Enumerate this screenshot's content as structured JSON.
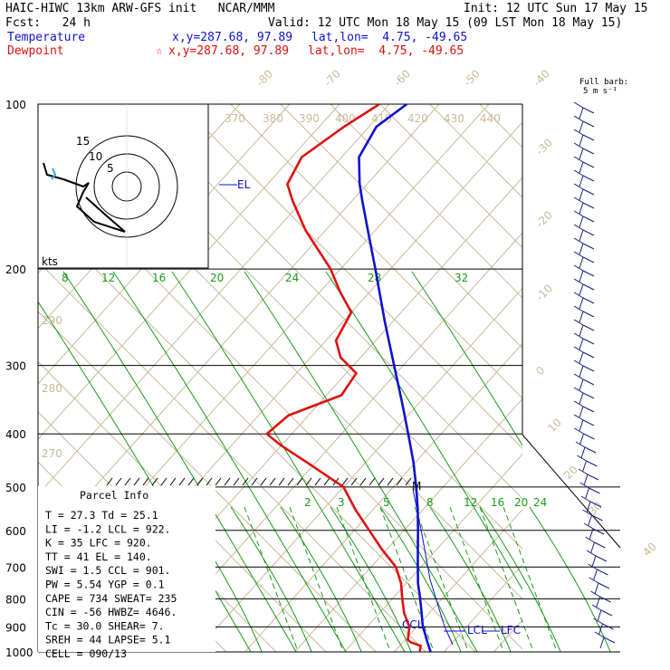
{
  "header": {
    "title": "HAIC-HIWC 13km ARW-GFS init   NCAR/MMM",
    "init": "Init: 12 UTC Sun 17 May 15",
    "fcst": "Fcst:   24 h",
    "valid": "Valid: 12 UTC Mon 18 May 15 (09 LST Mon 18 May 15)",
    "temperature_label": "Temperature",
    "temperature_xy": "x,y=287.68, 97.89",
    "temperature_latlon": "lat,lon=  4.75, -49.65",
    "dewpoint_label": "Dewpoint",
    "dewpoint_marker": "☆",
    "dewpoint_xy": "x,y=287.68, 97.89",
    "dewpoint_latlon": "lat,lon=  4.75, -49.65",
    "barb_label_1": "Full barb:",
    "barb_label_2": "5 m s⁻¹"
  },
  "hodograph": {
    "units": "kts",
    "ring_labels": [
      "5",
      "10",
      "15"
    ]
  },
  "parcel_info": {
    "title": "Parcel Info",
    "lines": [
      "T   =    27.3 Td =  25.1",
      "LI  =    -1.2 LCL =  922.",
      "K   =      35 LFC =  920.",
      "TT  =      41 EL  =  140.",
      "SWI =     1.5 CCL =  901.",
      "PW  =    5.54 YGP =   0.1",
      "CAPE =   734 SWEAT=  235",
      "CIN =    -56 HWBZ= 4646.",
      "Tc  =   30.0 SHEAR=   7.",
      "SREH =    44 LAPSE=  5.1",
      "CELL = 090/13"
    ]
  },
  "level_labels": {
    "el": "EL",
    "ccl": "CCL",
    "lcl": "LCL",
    "lfc": "LFC",
    "m": "M"
  },
  "chart_data": {
    "type": "skew-t",
    "pressure_levels": [
      100,
      200,
      300,
      400,
      500,
      600,
      700,
      800,
      900,
      1000
    ],
    "isotherm_labels": [
      "-80",
      "-70",
      "-60",
      "-50",
      "-40",
      "-30",
      "-20",
      "-10",
      "0",
      "10",
      "20",
      "30",
      "40"
    ],
    "dry_adiabat_labels": [
      "370",
      "380",
      "390",
      "400",
      "410",
      "420",
      "430",
      "440",
      "290",
      "280",
      "270"
    ],
    "moist_adiabat_labels_upper": [
      "8",
      "12",
      "16",
      "20",
      "24",
      "28",
      "32"
    ],
    "mixing_ratio_labels": [
      "2",
      "3",
      "5",
      "8",
      "12",
      "16",
      "20",
      "24"
    ],
    "series": [
      {
        "name": "Temperature",
        "color": "#1010d0",
        "points_p_T": [
          [
            1000,
            27.3
          ],
          [
            975,
            25.8
          ],
          [
            950,
            24.3
          ],
          [
            925,
            22.8
          ],
          [
            900,
            21.2
          ],
          [
            850,
            18.5
          ],
          [
            800,
            15.6
          ],
          [
            750,
            12.4
          ],
          [
            700,
            9.4
          ],
          [
            650,
            6.2
          ],
          [
            600,
            2.8
          ],
          [
            550,
            -1.0
          ],
          [
            500,
            -5.4
          ],
          [
            450,
            -10.5
          ],
          [
            400,
            -16.6
          ],
          [
            350,
            -23.6
          ],
          [
            300,
            -31.8
          ],
          [
            250,
            -41.5
          ],
          [
            200,
            -53.0
          ],
          [
            170,
            -61.5
          ],
          [
            150,
            -68.0
          ],
          [
            140,
            -71.5
          ],
          [
            125,
            -76.5
          ],
          [
            110,
            -78.5
          ],
          [
            100,
            -76.5
          ]
        ]
      },
      {
        "name": "Dewpoint",
        "color": "#e01010",
        "points_p_T": [
          [
            1000,
            25.1
          ],
          [
            975,
            24.2
          ],
          [
            960,
            21.5
          ],
          [
            950,
            20.5
          ],
          [
            900,
            18.5
          ],
          [
            850,
            15.0
          ],
          [
            800,
            12.0
          ],
          [
            750,
            9.0
          ],
          [
            700,
            5.0
          ],
          [
            650,
            -1.0
          ],
          [
            600,
            -7.0
          ],
          [
            550,
            -13.5
          ],
          [
            500,
            -20.0
          ],
          [
            450,
            -32.0
          ],
          [
            420,
            -40.0
          ],
          [
            400,
            -45.0
          ],
          [
            370,
            -44.0
          ],
          [
            340,
            -37.0
          ],
          [
            310,
            -38.0
          ],
          [
            290,
            -44.0
          ],
          [
            270,
            -48.0
          ],
          [
            240,
            -50.0
          ],
          [
            220,
            -56.0
          ],
          [
            200,
            -62.0
          ],
          [
            170,
            -74.0
          ],
          [
            150,
            -82.0
          ],
          [
            140,
            -86.0
          ],
          [
            125,
            -88.0
          ],
          [
            110,
            -85.0
          ],
          [
            100,
            -82.0
          ]
        ]
      }
    ],
    "wind_barbs_present": true,
    "grid": true
  }
}
